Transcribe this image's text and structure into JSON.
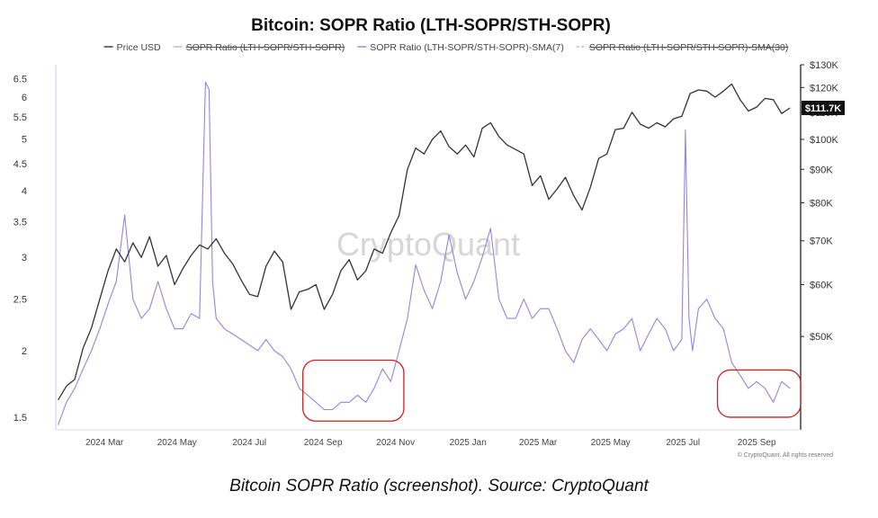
{
  "chart_data": {
    "type": "line",
    "title": "Bitcoin: SOPR Ratio (LTH-SOPR/STH-SOPR)",
    "legend": [
      {
        "name": "Price USD",
        "enabled": true,
        "color": "#333333",
        "style": "solid"
      },
      {
        "name": "SOPR Ratio (LTH-SOPR/STH-SOPR)",
        "enabled": false,
        "color": "#b9b3e8",
        "style": "solid"
      },
      {
        "name": "SOPR Ratio (LTH-SOPR/STH-SOPR)-SMA(7)",
        "enabled": true,
        "color": "#8f86e0",
        "style": "solid"
      },
      {
        "name": "SOPR Ratio (LTH-SOPR/STH-SOPR)-SMA(30)",
        "enabled": false,
        "color": "#b9b3e8",
        "style": "dashed"
      }
    ],
    "legend_position": "top",
    "x_ticks": [
      "2024 Mar",
      "2024 May",
      "2024 Jul",
      "2024 Sep",
      "2024 Nov",
      "2025 Jan",
      "2025 Mar",
      "2025 May",
      "2025 Jul",
      "2025 Sep"
    ],
    "x_tick_dates": [
      "2024-03-01",
      "2024-05-01",
      "2024-07-01",
      "2024-09-01",
      "2024-11-01",
      "2025-01-01",
      "2025-03-01",
      "2025-05-01",
      "2025-07-01",
      "2025-09-01"
    ],
    "x_range": [
      "2024-01-20",
      "2025-10-08"
    ],
    "left_axis": {
      "scale": "log",
      "range": [
        1.42,
        6.9
      ],
      "ticks": [
        "1.5",
        "2",
        "2.5",
        "3",
        "3.5",
        "4",
        "4.5",
        "5",
        "5.5",
        "6",
        "6.5"
      ]
    },
    "right_axis": {
      "scale": "log",
      "range": [
        36000,
        130000
      ],
      "ticks": [
        "$50K",
        "$60K",
        "$70K",
        "$80K",
        "$90K",
        "$100K",
        "$110K",
        "$120K",
        "$130K"
      ]
    },
    "current_price_label": "$111.7K",
    "current_price": 111700,
    "grid": false,
    "series": [
      {
        "name": "Price USD",
        "axis": "right",
        "x": [
          "2024-01-22",
          "2024-01-29",
          "2024-02-05",
          "2024-02-12",
          "2024-02-19",
          "2024-02-26",
          "2024-03-04",
          "2024-03-11",
          "2024-03-18",
          "2024-03-25",
          "2024-04-01",
          "2024-04-08",
          "2024-04-15",
          "2024-04-22",
          "2024-04-29",
          "2024-05-06",
          "2024-05-13",
          "2024-05-20",
          "2024-05-27",
          "2024-06-03",
          "2024-06-10",
          "2024-06-17",
          "2024-06-24",
          "2024-07-01",
          "2024-07-08",
          "2024-07-15",
          "2024-07-22",
          "2024-07-29",
          "2024-08-05",
          "2024-08-12",
          "2024-08-19",
          "2024-08-26",
          "2024-09-02",
          "2024-09-09",
          "2024-09-16",
          "2024-09-23",
          "2024-09-30",
          "2024-10-07",
          "2024-10-14",
          "2024-10-21",
          "2024-10-28",
          "2024-11-04",
          "2024-11-11",
          "2024-11-18",
          "2024-11-25",
          "2024-12-02",
          "2024-12-09",
          "2024-12-16",
          "2024-12-23",
          "2024-12-30",
          "2025-01-06",
          "2025-01-13",
          "2025-01-20",
          "2025-01-27",
          "2025-02-03",
          "2025-02-10",
          "2025-02-17",
          "2025-02-24",
          "2025-03-03",
          "2025-03-10",
          "2025-03-17",
          "2025-03-24",
          "2025-03-31",
          "2025-04-07",
          "2025-04-14",
          "2025-04-21",
          "2025-04-28",
          "2025-05-05",
          "2025-05-12",
          "2025-05-19",
          "2025-05-26",
          "2025-06-02",
          "2025-06-09",
          "2025-06-16",
          "2025-06-23",
          "2025-06-30",
          "2025-07-07",
          "2025-07-14",
          "2025-07-21",
          "2025-07-28",
          "2025-08-04",
          "2025-08-11",
          "2025-08-18",
          "2025-08-25",
          "2025-09-01",
          "2025-09-08",
          "2025-09-15",
          "2025-09-22",
          "2025-09-29"
        ],
        "values": [
          40000,
          42000,
          43000,
          48000,
          51500,
          57000,
          63000,
          68000,
          65000,
          69500,
          66000,
          71000,
          64000,
          66500,
          60000,
          63500,
          66500,
          69000,
          68000,
          70500,
          67000,
          64500,
          61000,
          58000,
          57500,
          64000,
          67500,
          65000,
          55000,
          58500,
          59000,
          60000,
          55000,
          58000,
          63000,
          65500,
          61000,
          63000,
          68000,
          67000,
          72000,
          76500,
          90000,
          97000,
          95000,
          100000,
          103000,
          97500,
          95000,
          98000,
          94000,
          104000,
          106000,
          101000,
          98000,
          96500,
          95000,
          85000,
          88000,
          81000,
          84000,
          87500,
          82000,
          78000,
          84500,
          93500,
          95000,
          103500,
          104000,
          110000,
          105500,
          104000,
          106000,
          104500,
          107500,
          108500,
          117500,
          119000,
          118500,
          116000,
          118500,
          121500,
          115000,
          110500,
          112000,
          115500,
          115000,
          109500,
          111700
        ]
      },
      {
        "name": "SOPR Ratio (LTH-SOPR/STH-SOPR)-SMA(7)",
        "axis": "left",
        "x": [
          "2024-01-22",
          "2024-01-29",
          "2024-02-05",
          "2024-02-12",
          "2024-02-19",
          "2024-02-26",
          "2024-03-04",
          "2024-03-11",
          "2024-03-18",
          "2024-03-25",
          "2024-04-01",
          "2024-04-08",
          "2024-04-15",
          "2024-04-22",
          "2024-04-29",
          "2024-05-06",
          "2024-05-13",
          "2024-05-20",
          "2024-05-25",
          "2024-05-28",
          "2024-05-31",
          "2024-06-03",
          "2024-06-10",
          "2024-06-17",
          "2024-06-24",
          "2024-07-01",
          "2024-07-08",
          "2024-07-15",
          "2024-07-22",
          "2024-07-29",
          "2024-08-05",
          "2024-08-12",
          "2024-08-19",
          "2024-08-26",
          "2024-09-02",
          "2024-09-09",
          "2024-09-16",
          "2024-09-23",
          "2024-09-30",
          "2024-10-07",
          "2024-10-14",
          "2024-10-21",
          "2024-10-28",
          "2024-11-04",
          "2024-11-11",
          "2024-11-18",
          "2024-11-25",
          "2024-12-02",
          "2024-12-09",
          "2024-12-16",
          "2024-12-23",
          "2024-12-30",
          "2025-01-06",
          "2025-01-13",
          "2025-01-20",
          "2025-01-27",
          "2025-02-03",
          "2025-02-10",
          "2025-02-17",
          "2025-02-24",
          "2025-03-03",
          "2025-03-10",
          "2025-03-17",
          "2025-03-24",
          "2025-03-31",
          "2025-04-07",
          "2025-04-14",
          "2025-04-21",
          "2025-04-28",
          "2025-05-05",
          "2025-05-12",
          "2025-05-19",
          "2025-05-26",
          "2025-06-02",
          "2025-06-09",
          "2025-06-16",
          "2025-06-23",
          "2025-06-30",
          "2025-07-03",
          "2025-07-06",
          "2025-07-09",
          "2025-07-14",
          "2025-07-21",
          "2025-07-28",
          "2025-08-04",
          "2025-08-11",
          "2025-08-18",
          "2025-08-25",
          "2025-09-01",
          "2025-09-08",
          "2025-09-15",
          "2025-09-22",
          "2025-09-29"
        ],
        "values": [
          1.45,
          1.6,
          1.7,
          1.85,
          2.0,
          2.2,
          2.45,
          2.7,
          3.6,
          2.5,
          2.3,
          2.4,
          2.7,
          2.4,
          2.2,
          2.2,
          2.35,
          2.3,
          6.4,
          6.2,
          2.7,
          2.3,
          2.2,
          2.15,
          2.1,
          2.05,
          2.0,
          2.1,
          2.0,
          1.95,
          1.85,
          1.7,
          1.65,
          1.6,
          1.55,
          1.55,
          1.6,
          1.6,
          1.65,
          1.6,
          1.7,
          1.85,
          1.75,
          2.0,
          2.3,
          2.9,
          2.6,
          2.4,
          2.7,
          3.3,
          2.8,
          2.5,
          2.7,
          3.0,
          3.4,
          2.5,
          2.3,
          2.3,
          2.5,
          2.3,
          2.4,
          2.4,
          2.2,
          2.0,
          1.9,
          2.1,
          2.2,
          2.1,
          2.0,
          2.15,
          2.2,
          2.3,
          2.0,
          2.15,
          2.3,
          2.2,
          2.0,
          2.1,
          5.2,
          2.3,
          2.0,
          2.4,
          2.5,
          2.3,
          2.2,
          1.9,
          1.8,
          1.7,
          1.75,
          1.7,
          1.6,
          1.75,
          1.7
        ]
      }
    ],
    "highlight_boxes": [
      {
        "x_start": "2024-08-15",
        "x_end": "2024-11-08",
        "y_low": 1.475,
        "y_high": 1.92
      },
      {
        "x_start": "2025-07-30",
        "x_end": "2025-10-08",
        "y_low": 1.5,
        "y_high": 1.84
      }
    ]
  },
  "watermark": "CryptoQuant",
  "credit": "© CryptoQuant. All rights reserved",
  "caption": "Bitcoin SOPR Ratio (screenshot). Source: CryptoQuant"
}
